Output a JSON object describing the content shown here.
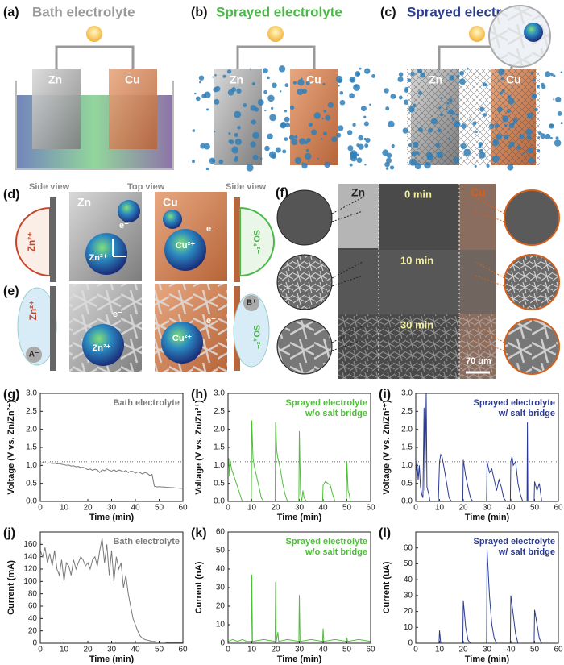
{
  "panels": {
    "a": {
      "label": "(a)",
      "title": "Bath electrolyte",
      "anode": "Zn",
      "cathode": "Cu"
    },
    "b": {
      "label": "(b)",
      "title": "Sprayed electrolyte",
      "anode": "Zn",
      "cathode": "Cu"
    },
    "c": {
      "label": "(c)",
      "title": "Sprayed electrolyte",
      "anode": "Zn",
      "cathode": "Cu"
    },
    "d": {
      "label": "(d)",
      "side_view_left": "Side view",
      "top_view": "Top view",
      "side_view_right": "Side view",
      "zn": "Zn",
      "cu": "Cu",
      "zn_ion": "Zn²⁺",
      "cu_ion": "Cu²⁺",
      "electron": "e⁻",
      "sulfate": "SO₄²⁻"
    },
    "e": {
      "label": "(e)",
      "zn_ion": "Zn²⁺",
      "cu_ion": "Cu²⁺",
      "electron": "e⁻",
      "sulfate": "SO₄²⁻",
      "anion": "A⁻",
      "cation": "B⁺"
    },
    "f": {
      "label": "(f)",
      "zn": "Zn",
      "cu": "Cu",
      "times": [
        "0 min",
        "10 min",
        "30 min"
      ],
      "scale_bar": "70 um"
    }
  },
  "chart_data": [
    {
      "type": "line",
      "label": "(g)",
      "annotation": [
        "Bath electrolyte"
      ],
      "ylabel": "Voltage (V vs. Zn/Zn²⁺)",
      "xlabel": "Time (min)",
      "color": "#7a7a7a",
      "x": [
        0,
        1,
        2,
        3,
        4,
        5,
        6,
        7,
        8,
        9,
        10,
        11,
        12,
        13,
        14,
        15,
        16,
        17,
        18,
        19,
        20,
        21,
        22,
        23,
        24,
        25,
        26,
        27,
        28,
        29,
        30,
        31,
        32,
        33,
        34,
        35,
        36,
        37,
        38,
        39,
        40,
        41,
        42,
        43,
        44,
        45,
        46,
        47,
        48,
        49,
        50,
        51,
        52,
        53,
        54,
        55,
        56,
        57,
        58,
        59,
        60
      ],
      "values": [
        1.05,
        1.08,
        1.07,
        1.06,
        1.07,
        1.05,
        1.06,
        1.04,
        1.05,
        1.03,
        1.02,
        1.0,
        1.01,
        0.98,
        0.99,
        0.96,
        0.97,
        0.94,
        0.95,
        0.92,
        0.88,
        0.9,
        0.86,
        0.89,
        0.87,
        0.8,
        0.88,
        0.85,
        0.9,
        0.86,
        0.84,
        0.88,
        0.83,
        0.87,
        0.85,
        0.82,
        0.86,
        0.8,
        0.84,
        0.83,
        0.78,
        0.82,
        0.8,
        0.76,
        0.8,
        0.78,
        0.72,
        0.75,
        0.42,
        0.4,
        0.41,
        0.4,
        0.4,
        0.39,
        0.39,
        0.38,
        0.38,
        0.37,
        0.37,
        0.36,
        0.36
      ],
      "xlim": [
        0,
        60
      ],
      "xticks": [
        0,
        10,
        20,
        30,
        40,
        50,
        60
      ],
      "ylim": [
        0,
        3
      ],
      "yticks": [
        {
          "value": 0,
          "label": "0.0"
        },
        0.5,
        {
          "value": 1,
          "label": "1.0"
        },
        1.5,
        {
          "value": 2,
          "label": "2.0"
        },
        2.5,
        {
          "value": 3,
          "label": "3.0"
        }
      ],
      "reference_line": 1.1
    },
    {
      "type": "line",
      "label": "(h)",
      "annotation": [
        "Sprayed electrolyte",
        "w/o salt bridge"
      ],
      "ylabel": "Voltage (V vs. Zn/Zn²⁺)",
      "xlabel": "Time (min)",
      "color": "#4fbf3a",
      "x": [
        0,
        0.3,
        0.6,
        1,
        1.5,
        2,
        3,
        4,
        5,
        6,
        9.8,
        10,
        10.5,
        11,
        12,
        13,
        14,
        15,
        19.8,
        20,
        20.5,
        21,
        22,
        23,
        24,
        25,
        29.8,
        30,
        30.5,
        31,
        31.5,
        32,
        33,
        39.8,
        40,
        41,
        42,
        43,
        44,
        45,
        49.8,
        50,
        50.5,
        51,
        51.5,
        52
      ],
      "values": [
        0.9,
        1.2,
        0.7,
        1.1,
        0.9,
        0.8,
        0.6,
        0.4,
        0.2,
        0,
        0,
        2.25,
        1.2,
        1.0,
        0.7,
        0.4,
        0.1,
        0,
        0,
        2.2,
        1.4,
        1.2,
        0.9,
        0.5,
        0.2,
        0,
        0,
        1.95,
        0.2,
        0,
        0.3,
        0.1,
        0,
        0,
        0.45,
        0.55,
        0.5,
        0.45,
        0.2,
        0,
        0,
        1.1,
        0.3,
        0.2,
        0,
        0
      ],
      "xlim": [
        0,
        60
      ],
      "xticks": [
        0,
        10,
        20,
        30,
        40,
        50,
        60
      ],
      "ylim": [
        0,
        3
      ],
      "yticks": [
        {
          "value": 0,
          "label": "0.0"
        },
        0.5,
        {
          "value": 1,
          "label": "1.0"
        },
        1.5,
        {
          "value": 2,
          "label": "2.0"
        },
        2.5,
        {
          "value": 3,
          "label": "3.0"
        }
      ],
      "reference_line": 1.1
    },
    {
      "type": "line",
      "label": "(i)",
      "annotation": [
        "Sprayed electrolyte",
        "w/ salt bridge"
      ],
      "ylabel": "Voltage (V vs. Zn/Zn²⁺)",
      "xlabel": "Time (min)",
      "color": "#2b3a8f",
      "x": [
        0,
        0.5,
        1,
        1.5,
        2,
        2.5,
        3,
        3.5,
        3.8,
        4.4,
        4.7,
        5.5,
        6,
        9.5,
        10,
        10.5,
        11,
        12,
        13,
        14,
        15,
        19.8,
        20,
        21,
        22,
        23,
        24,
        29.8,
        30,
        31,
        32,
        33,
        34,
        35,
        36,
        37,
        38,
        39.8,
        40,
        40.5,
        41,
        42,
        43,
        44,
        45,
        46.8,
        47,
        47.2,
        49.8,
        50,
        51,
        52,
        53,
        54
      ],
      "values": [
        0.8,
        1.1,
        0.6,
        1.0,
        0.4,
        0.2,
        0.1,
        2.6,
        0.3,
        3.0,
        0.4,
        0.2,
        0,
        0,
        1.1,
        1.3,
        1.25,
        0.9,
        0.5,
        0.1,
        0,
        0,
        1.15,
        0.7,
        0.4,
        0.1,
        0,
        0,
        1.1,
        0.8,
        0.9,
        0.6,
        0.3,
        0.6,
        0.4,
        0.1,
        0,
        0,
        1.1,
        1.25,
        1.0,
        1.1,
        0.5,
        0.2,
        0,
        0,
        2.2,
        0,
        0,
        0.55,
        0.3,
        0.5,
        0,
        0
      ],
      "xlim": [
        0,
        60
      ],
      "xticks": [
        0,
        10,
        20,
        30,
        40,
        50,
        60
      ],
      "ylim": [
        0,
        3
      ],
      "yticks": [
        {
          "value": 0,
          "label": "0.0"
        },
        0.5,
        {
          "value": 1,
          "label": "1.0"
        },
        1.5,
        {
          "value": 2,
          "label": "2.0"
        },
        2.5,
        {
          "value": 3,
          "label": "3.0"
        }
      ],
      "reference_line": 1.1
    },
    {
      "type": "line",
      "label": "(j)",
      "annotation": [
        "Bath electrolyte"
      ],
      "ylabel": "Current (mA)",
      "xlabel": "Time (min)",
      "color": "#7a7a7a",
      "x": [
        0,
        1,
        2,
        3,
        4,
        5,
        6,
        7,
        8,
        9,
        10,
        11,
        12,
        13,
        14,
        15,
        16,
        17,
        18,
        19,
        20,
        21,
        22,
        23,
        24,
        25,
        26,
        27,
        28,
        29,
        30,
        31,
        32,
        33,
        34,
        35,
        36,
        37,
        38,
        39,
        40,
        41,
        42,
        43,
        44,
        45,
        46,
        47,
        48,
        49,
        50,
        52,
        54,
        56,
        58,
        60
      ],
      "values": [
        150,
        140,
        155,
        130,
        145,
        125,
        150,
        120,
        110,
        135,
        100,
        130,
        125,
        110,
        135,
        120,
        130,
        140,
        135,
        125,
        130,
        120,
        135,
        140,
        125,
        150,
        170,
        130,
        160,
        110,
        150,
        100,
        140,
        120,
        130,
        90,
        110,
        80,
        60,
        40,
        30,
        20,
        12,
        8,
        6,
        5,
        4,
        3,
        3,
        2,
        2,
        2,
        1,
        1,
        1,
        1
      ],
      "xlim": [
        0,
        60
      ],
      "xticks": [
        0,
        10,
        20,
        30,
        40,
        50,
        60
      ],
      "ylim": [
        0,
        180
      ],
      "yticks": [
        0,
        20,
        40,
        60,
        80,
        100,
        120,
        140,
        160
      ]
    },
    {
      "type": "line",
      "label": "(k)",
      "annotation": [
        "Sprayed electrolyte",
        "w/o salt bridge"
      ],
      "ylabel": "Current (nA)",
      "xlabel": "Time (min)",
      "color": "#4fbf3a",
      "x": [
        0,
        2,
        4,
        6,
        8,
        9.8,
        10,
        10.3,
        15,
        19.8,
        20,
        20.3,
        21,
        21.3,
        25,
        29.8,
        30,
        30.3,
        35,
        39.8,
        40,
        40.3,
        45,
        49.8,
        50,
        50.3,
        55,
        60
      ],
      "values": [
        1,
        2,
        1,
        2,
        1,
        1,
        37,
        1,
        2,
        1,
        33,
        1,
        6,
        1,
        2,
        1,
        26,
        1,
        2,
        1,
        8,
        1,
        2,
        1,
        3,
        1,
        2,
        1
      ],
      "xlim": [
        0,
        60
      ],
      "xticks": [
        0,
        10,
        20,
        30,
        40,
        50,
        60
      ],
      "ylim": [
        0,
        60
      ],
      "yticks": [
        0,
        10,
        20,
        30,
        40,
        50,
        60
      ]
    },
    {
      "type": "line",
      "label": "(l)",
      "annotation": [
        "Sprayed electrolyte",
        "w/ salt bridge"
      ],
      "ylabel": "Current (uA)",
      "xlabel": "Time (min)",
      "color": "#2b3a8f",
      "x": [
        0,
        9.8,
        10,
        10.5,
        19.8,
        20,
        21,
        22,
        23,
        29.8,
        30,
        31,
        32,
        33,
        34,
        39.8,
        40,
        41,
        42,
        43,
        49.8,
        50,
        51,
        52,
        53,
        60
      ],
      "values": [
        0,
        0,
        8,
        0,
        0,
        27,
        10,
        2,
        0,
        0,
        59,
        30,
        12,
        3,
        0,
        0,
        30,
        18,
        6,
        0,
        0,
        21,
        12,
        3,
        0,
        0
      ],
      "xlim": [
        0,
        60
      ],
      "xticks": [
        0,
        10,
        20,
        30,
        40,
        50,
        60
      ],
      "ylim": [
        0,
        70
      ],
      "yticks": [
        0,
        10,
        20,
        30,
        40,
        50,
        60
      ]
    }
  ]
}
